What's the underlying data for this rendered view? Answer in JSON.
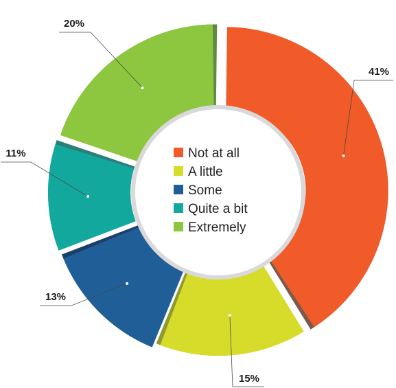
{
  "chart_data": {
    "type": "pie",
    "variant": "donut",
    "title": "",
    "legend_position": "center",
    "slices": [
      {
        "label": "Not at all",
        "value": 41,
        "display": "41%",
        "color": "#F15A29",
        "shade": "#7a5a4a"
      },
      {
        "label": "A little",
        "value": 15,
        "display": "15%",
        "color": "#D7DC2A",
        "shade": "#8E9A2C"
      },
      {
        "label": "Some",
        "value": 13,
        "display": "13%",
        "color": "#1F5E96",
        "shade": "#1a3f6a"
      },
      {
        "label": "Quite a bit",
        "value": 11,
        "display": "11%",
        "color": "#13A89E",
        "shade": "#2c7e78"
      },
      {
        "label": "Extremely",
        "value": 20,
        "display": "20%",
        "color": "#8DC63F",
        "shade": "#5f8a44"
      }
    ]
  }
}
